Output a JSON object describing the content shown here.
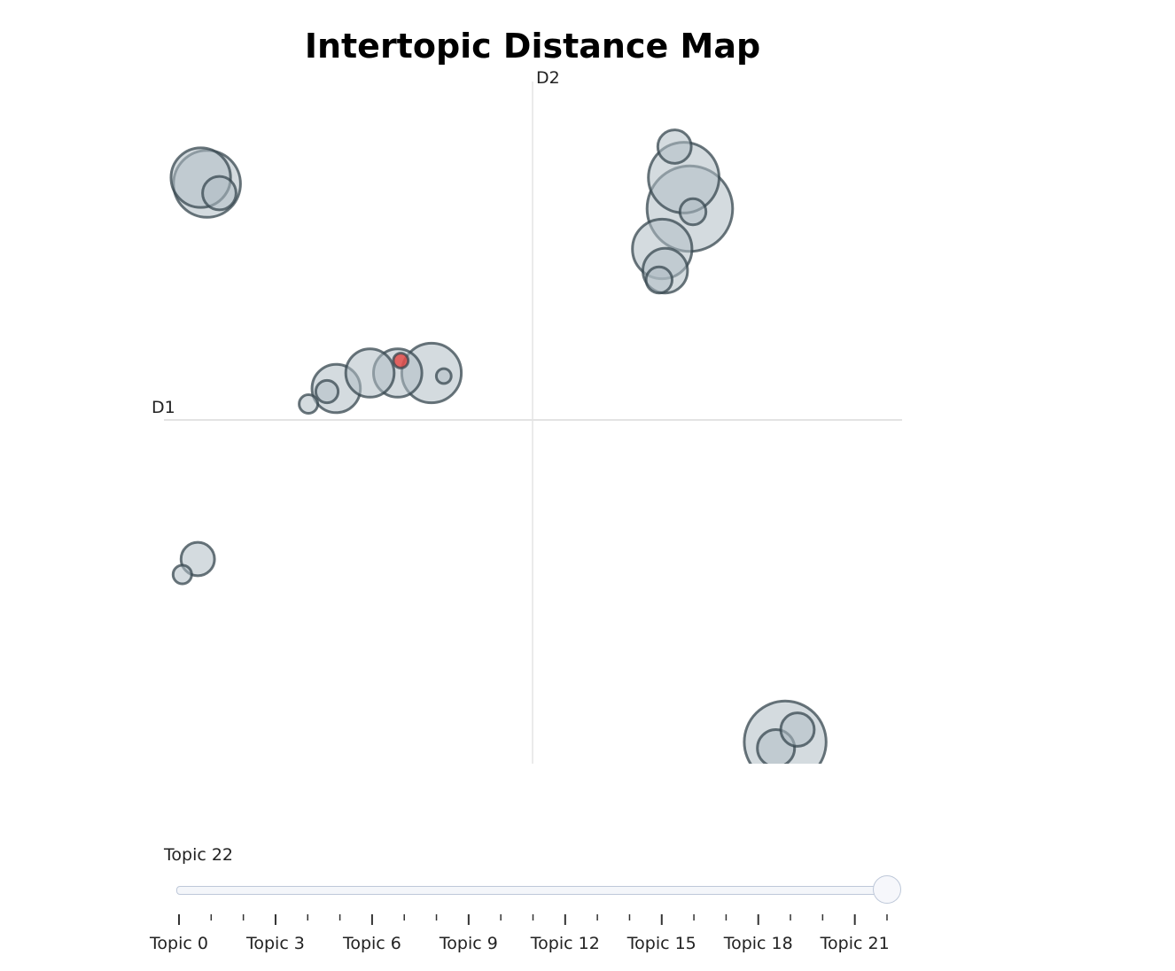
{
  "chart_data": {
    "type": "scatter",
    "title": "Intertopic Distance Map",
    "xlabel": "D1",
    "ylabel": "D2",
    "xlim": [
      -12,
      12
    ],
    "ylim": [
      -11,
      11
    ],
    "points": [
      {
        "topic": 0,
        "x": -10.6,
        "y": 7.7,
        "size": 18
      },
      {
        "topic": 1,
        "x": -10.8,
        "y": 7.9,
        "size": 16
      },
      {
        "topic": 2,
        "x": -10.2,
        "y": 7.4,
        "size": 9
      },
      {
        "topic": 3,
        "x": 4.9,
        "y": 7.9,
        "size": 19
      },
      {
        "topic": 4,
        "x": 4.6,
        "y": 8.9,
        "size": 9
      },
      {
        "topic": 5,
        "x": 5.1,
        "y": 6.9,
        "size": 23
      },
      {
        "topic": 6,
        "x": 5.2,
        "y": 6.8,
        "size": 7
      },
      {
        "topic": 7,
        "x": 4.2,
        "y": 5.6,
        "size": 16
      },
      {
        "topic": 8,
        "x": 4.3,
        "y": 4.9,
        "size": 12
      },
      {
        "topic": 9,
        "x": 4.1,
        "y": 4.6,
        "size": 7
      },
      {
        "topic": 10,
        "x": -3.3,
        "y": 1.6,
        "size": 16
      },
      {
        "topic": 11,
        "x": -4.4,
        "y": 1.6,
        "size": 13
      },
      {
        "topic": 12,
        "x": -6.4,
        "y": 1.1,
        "size": 13
      },
      {
        "topic": 13,
        "x": -6.7,
        "y": 1.0,
        "size": 6
      },
      {
        "topic": 14,
        "x": -7.3,
        "y": 0.6,
        "size": 5
      },
      {
        "topic": 15,
        "x": -2.9,
        "y": 1.5,
        "size": 4
      },
      {
        "topic": 16,
        "x": -5.3,
        "y": 1.6,
        "size": 13
      },
      {
        "topic": 17,
        "x": -10.9,
        "y": -4.4,
        "size": 9
      },
      {
        "topic": 18,
        "x": -11.4,
        "y": -4.9,
        "size": 5
      },
      {
        "topic": 19,
        "x": 8.2,
        "y": -10.3,
        "size": 22
      },
      {
        "topic": 20,
        "x": 8.6,
        "y": -9.9,
        "size": 9
      },
      {
        "topic": 21,
        "x": 7.9,
        "y": -10.5,
        "size": 10
      },
      {
        "topic": 22,
        "x": -4.3,
        "y": 2.0,
        "size": 4
      }
    ],
    "selected_topic": 22,
    "colors": {
      "bubble_fill": "#b0bec5",
      "bubble_edge": "#37474f",
      "selected_fill": "#e53935",
      "axis_line": "#e5e5e5"
    },
    "grid": false,
    "legend": "none"
  },
  "slider": {
    "current_label": "Topic 22",
    "min": 0,
    "max": 22,
    "value": 22,
    "tick_labels": [
      "Topic 0",
      "Topic 3",
      "Topic 6",
      "Topic 9",
      "Topic 12",
      "Topic 15",
      "Topic 18",
      "Topic 21"
    ]
  }
}
